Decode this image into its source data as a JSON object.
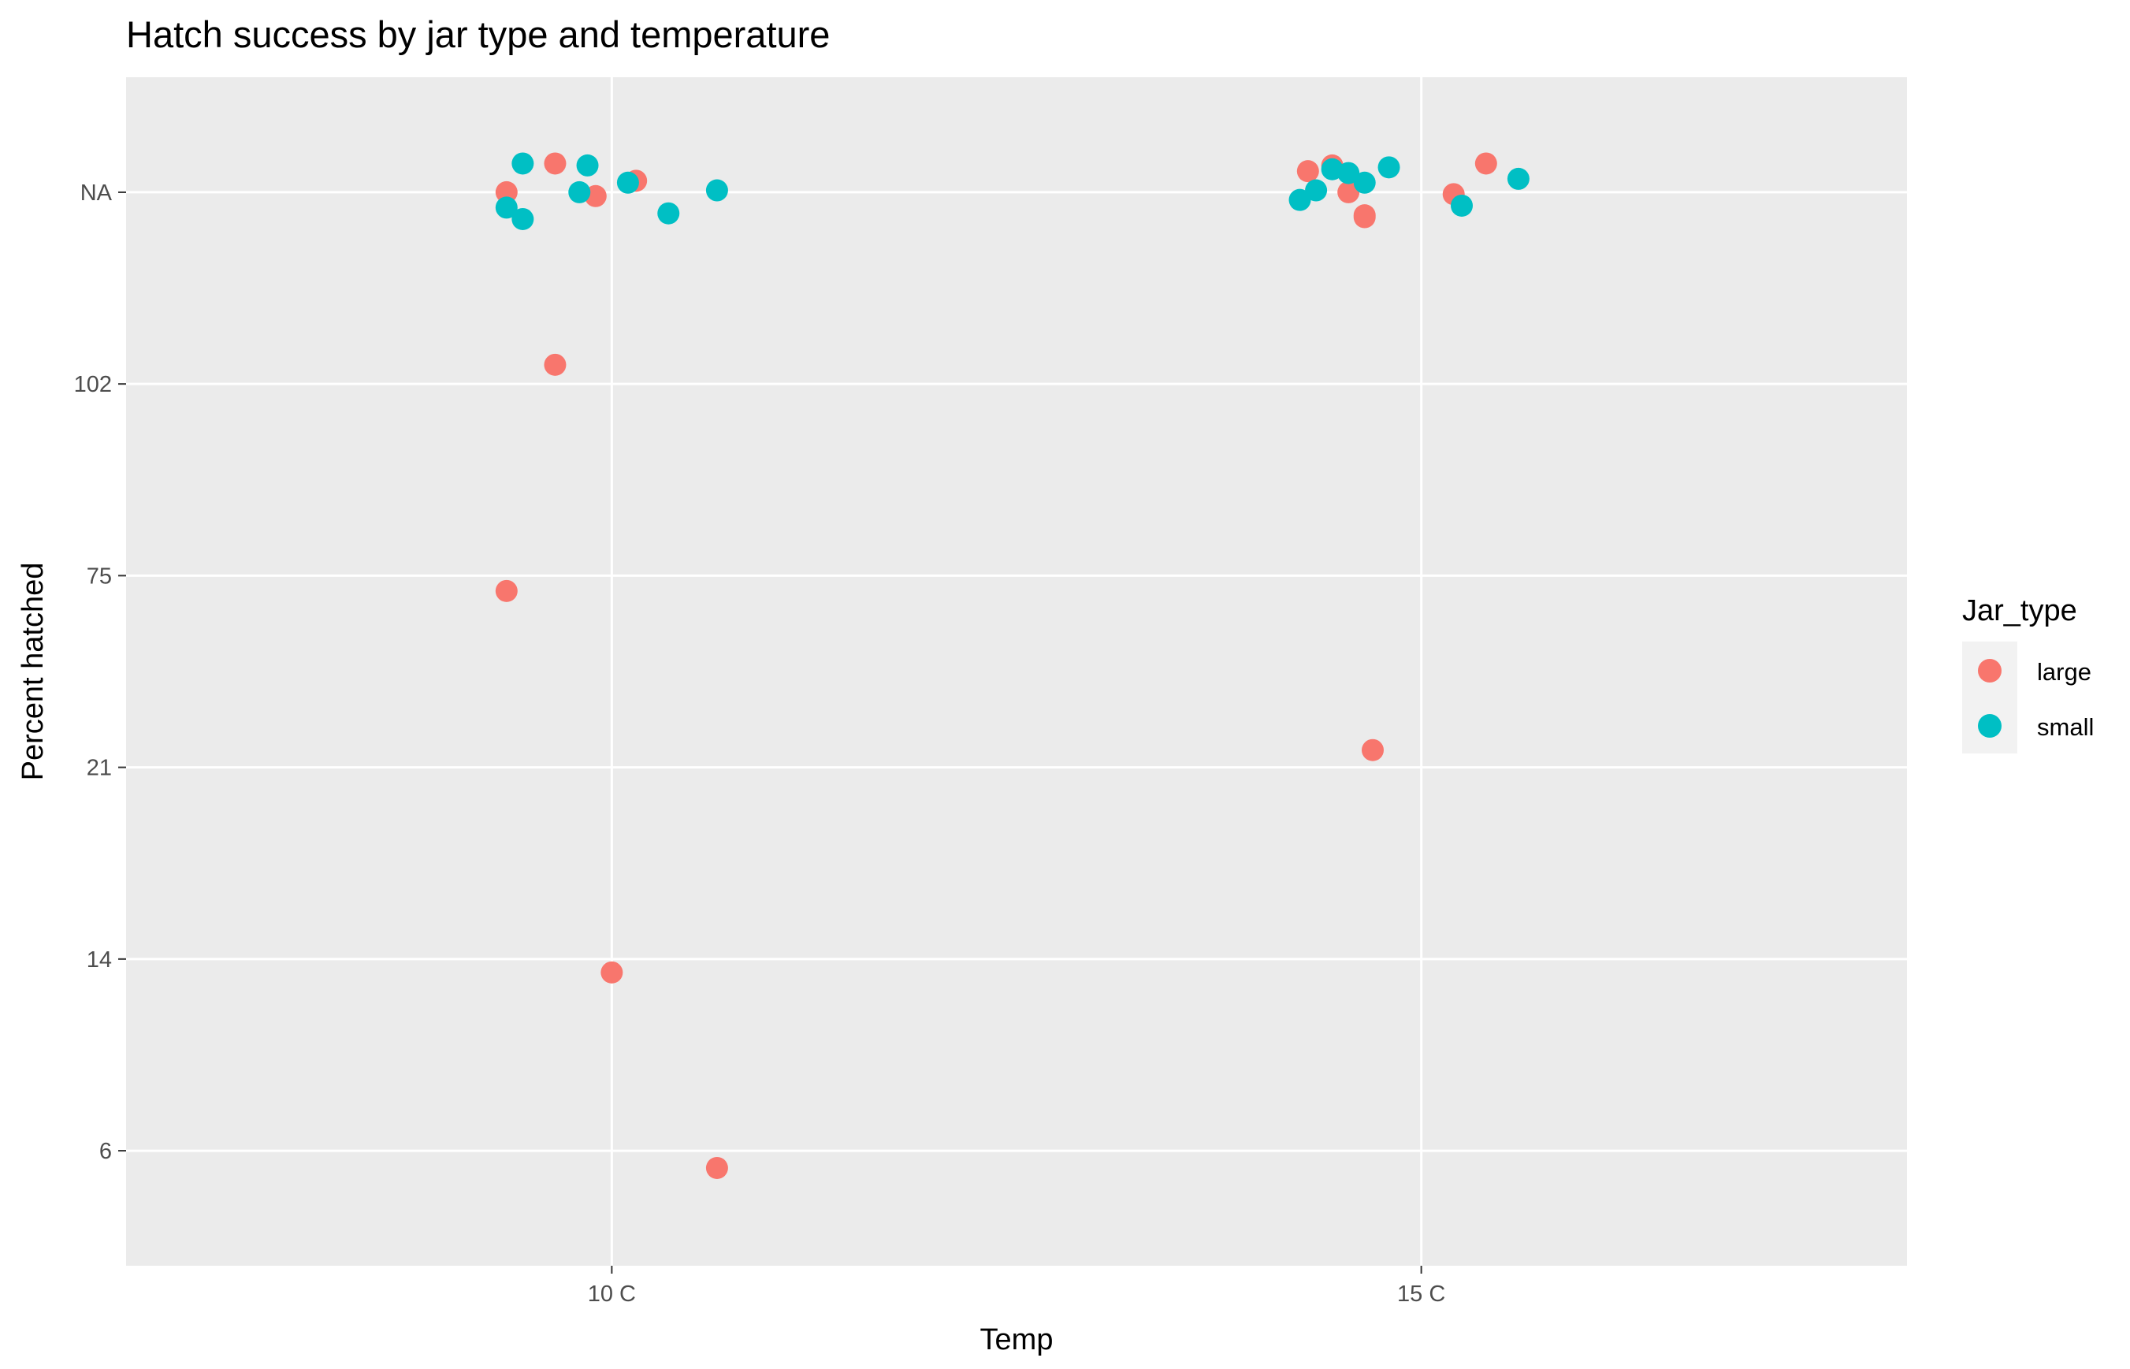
{
  "chart_data": {
    "type": "scatter",
    "title": "Hatch success by jar type and temperature",
    "xlabel": "Temp",
    "ylabel": "Percent hatched",
    "x_categories": [
      "10 C",
      "15 C"
    ],
    "y_scale": "discrete",
    "y_categories": [
      "6",
      "14",
      "21",
      "75",
      "102",
      "NA"
    ],
    "grid": true,
    "legend": {
      "title": "Jar_type",
      "position": "right",
      "entries": [
        {
          "label": "large",
          "color": "#F8766D"
        },
        {
          "label": "small",
          "color": "#00BFC4"
        }
      ]
    },
    "note": "Points are horizontally and vertically jittered around category positions; y/jitter values below are in category-index units (0 = '6', 5 = 'NA').",
    "series": [
      {
        "name": "large",
        "color": "#F8766D",
        "points": [
          {
            "x": "10 C",
            "y": "NA",
            "jx": -0.13,
            "jy": 0.0
          },
          {
            "x": "10 C",
            "y": "NA",
            "jx": -0.07,
            "jy": 0.15
          },
          {
            "x": "10 C",
            "y": "NA",
            "jx": -0.02,
            "jy": -0.02
          },
          {
            "x": "10 C",
            "y": "NA",
            "jx": 0.03,
            "jy": 0.06
          },
          {
            "x": "10 C",
            "y": "102",
            "jx": -0.07,
            "jy": 0.1
          },
          {
            "x": "10 C",
            "y": "75",
            "jx": -0.13,
            "jy": -0.08
          },
          {
            "x": "10 C",
            "y": "14",
            "jx": 0.0,
            "jy": -0.07
          },
          {
            "x": "10 C",
            "y": "6",
            "jx": 0.13,
            "jy": -0.09
          },
          {
            "x": "15 C",
            "y": "NA",
            "jx": -0.14,
            "jy": 0.11
          },
          {
            "x": "15 C",
            "y": "NA",
            "jx": -0.11,
            "jy": 0.14
          },
          {
            "x": "15 C",
            "y": "NA",
            "jx": -0.09,
            "jy": 0.0
          },
          {
            "x": "15 C",
            "y": "NA",
            "jx": -0.07,
            "jy": -0.13
          },
          {
            "x": "15 C",
            "y": "NA",
            "jx": -0.07,
            "jy": -0.12
          },
          {
            "x": "15 C",
            "y": "NA",
            "jx": 0.04,
            "jy": -0.01
          },
          {
            "x": "15 C",
            "y": "NA",
            "jx": 0.08,
            "jy": 0.15
          },
          {
            "x": "15 C",
            "y": "21",
            "jx": -0.06,
            "jy": 0.09
          }
        ]
      },
      {
        "name": "small",
        "color": "#00BFC4",
        "points": [
          {
            "x": "10 C",
            "y": "NA",
            "jx": -0.13,
            "jy": -0.08
          },
          {
            "x": "10 C",
            "y": "NA",
            "jx": -0.11,
            "jy": 0.15
          },
          {
            "x": "10 C",
            "y": "NA",
            "jx": -0.11,
            "jy": -0.14
          },
          {
            "x": "10 C",
            "y": "NA",
            "jx": -0.04,
            "jy": 0.0
          },
          {
            "x": "10 C",
            "y": "NA",
            "jx": -0.03,
            "jy": 0.14
          },
          {
            "x": "10 C",
            "y": "NA",
            "jx": 0.02,
            "jy": 0.05
          },
          {
            "x": "10 C",
            "y": "NA",
            "jx": 0.07,
            "jy": -0.11
          },
          {
            "x": "10 C",
            "y": "NA",
            "jx": 0.13,
            "jy": 0.01
          },
          {
            "x": "15 C",
            "y": "NA",
            "jx": -0.15,
            "jy": -0.04
          },
          {
            "x": "15 C",
            "y": "NA",
            "jx": -0.13,
            "jy": 0.01
          },
          {
            "x": "15 C",
            "y": "NA",
            "jx": -0.11,
            "jy": 0.12
          },
          {
            "x": "15 C",
            "y": "NA",
            "jx": -0.09,
            "jy": 0.1
          },
          {
            "x": "15 C",
            "y": "NA",
            "jx": -0.07,
            "jy": 0.05
          },
          {
            "x": "15 C",
            "y": "NA",
            "jx": -0.04,
            "jy": 0.13
          },
          {
            "x": "15 C",
            "y": "NA",
            "jx": 0.05,
            "jy": -0.07
          },
          {
            "x": "15 C",
            "y": "NA",
            "jx": 0.12,
            "jy": 0.07
          }
        ]
      }
    ]
  }
}
